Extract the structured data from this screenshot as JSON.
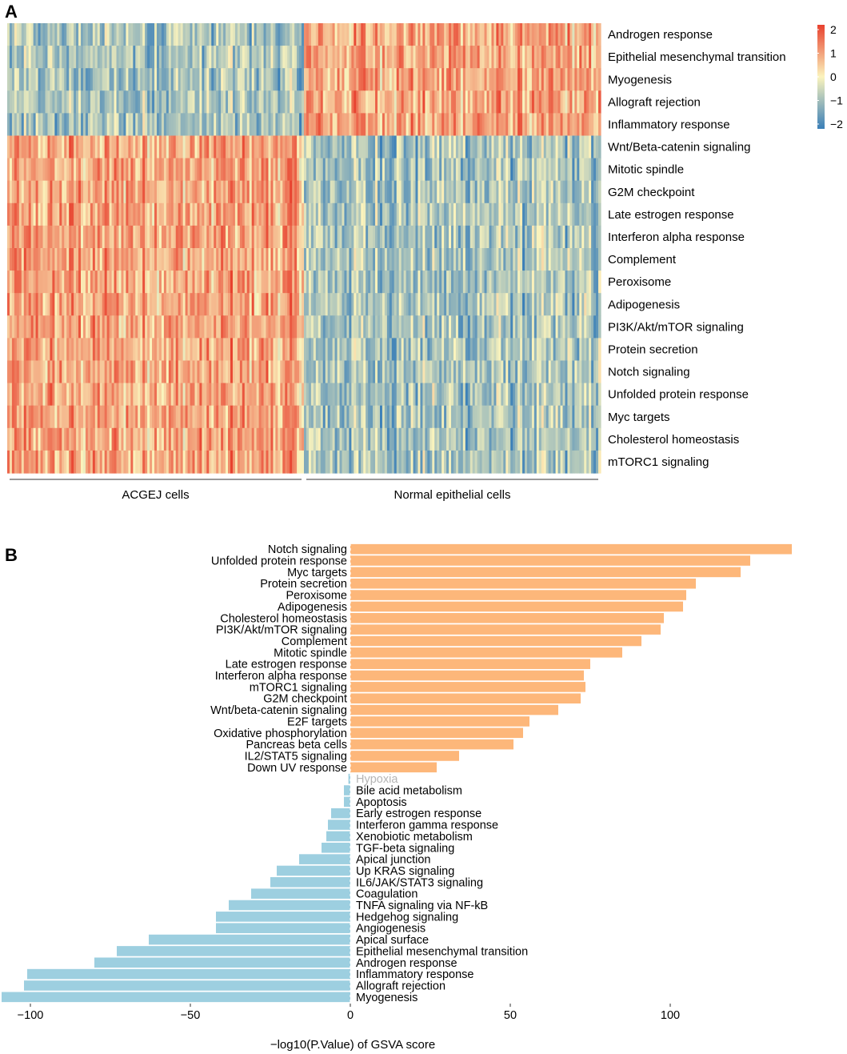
{
  "panels": {
    "a_label": "A",
    "b_label": "B"
  },
  "chart_data": [
    {
      "type": "heatmap",
      "panel": "A",
      "rows": [
        "Androgen response",
        "Epithelial mesenchymal transition",
        "Myogenesis",
        "Allograft rejection",
        "Inflammatory response",
        "Wnt/Beta-catenin signaling",
        "Mitotic spindle",
        "G2M checkpoint",
        "Late estrogen response",
        "Interferon alpha response",
        "Complement",
        "Peroxisome",
        "Adipogenesis",
        "PI3K/Akt/mTOR signaling",
        "Protein secretion",
        "Notch signaling",
        "Unfolded protein response",
        "Myc targets",
        "Cholesterol homeostasis",
        "mTORC1 signaling"
      ],
      "row_direction": [
        -1,
        -1,
        -1,
        -1,
        -1,
        1,
        1,
        1,
        1,
        1,
        1,
        1,
        1,
        1,
        1,
        1,
        1,
        1,
        1,
        1
      ],
      "groups": [
        "ACGEJ cells",
        "Normal epithelial cells"
      ],
      "columns_per_group": 125,
      "colorbar": {
        "ticks": [
          "2",
          "1",
          "0",
          "−1",
          "−2"
        ],
        "range": [
          -2,
          2
        ],
        "low_color": "#3a7fb8",
        "mid_color": "#fbf4bd",
        "high_color": "#e8412e"
      }
    },
    {
      "type": "bar",
      "orientation": "horizontal",
      "panel": "B",
      "categories": [
        "Notch signaling",
        "Unfolded protein response",
        "Myc targets",
        "Protein secretion",
        "Peroxisome",
        "Adipogenesis",
        "Cholesterol homeostasis",
        "PI3K/Akt/mTOR signaling",
        "Complement",
        "Mitotic spindle",
        "Late estrogen response",
        "Interferon alpha response",
        "mTORC1 signaling",
        "G2M checkpoint",
        "Wnt/beta-catenin signaling",
        "E2F targets",
        "Oxidative phosphorylation",
        "Pancreas beta cells",
        "IL2/STAT5 signaling",
        "Down UV response",
        "Hypoxia",
        "Bile acid metabolism",
        "Apoptosis",
        "Early estrogen response",
        "Interferon gamma response",
        "Xenobiotic metabolism",
        "TGF-beta signaling",
        "Apical junction",
        "Up KRAS signaling",
        "IL6/JAK/STAT3 signaling",
        "Coagulation",
        "TNFA signaling via NF-kB",
        "Hedgehog signaling",
        "Angiogenesis",
        "Apical surface",
        "Epithelial mesenchymal transition",
        "Androgen response",
        "Inflammatory response",
        "Allograft rejection",
        "Myogenesis"
      ],
      "values": [
        138,
        125,
        122,
        108,
        105,
        104,
        98,
        97,
        91,
        85,
        75,
        73,
        73.5,
        72,
        65,
        56,
        54,
        51,
        34,
        27,
        -0.6,
        -2,
        -2,
        -6,
        -7,
        -7.5,
        -9,
        -16,
        -23,
        -25,
        -31,
        -38,
        -42,
        -42,
        -63,
        -73,
        -80,
        -101,
        -102,
        -109
      ],
      "xlim": [
        -110,
        140
      ],
      "xticks": [
        -100,
        -50,
        0,
        50,
        100
      ],
      "xtick_labels": [
        "−100",
        "−50",
        "0",
        "50",
        "100"
      ],
      "xlabel": "−log10(P.Value) of GSVA score",
      "colors": {
        "positive": "#fdb77a",
        "negative": "#9dcfe0",
        "faded_label": "#b5b5b5"
      }
    }
  ]
}
